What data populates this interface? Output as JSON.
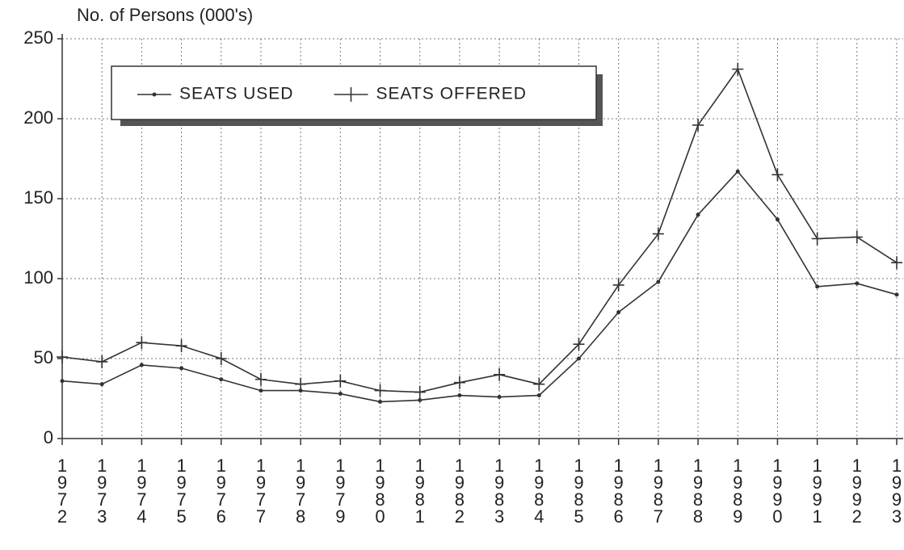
{
  "chart_data": {
    "type": "line",
    "y_axis_label": "No. of Persons (000's)",
    "categories": [
      "1972",
      "1973",
      "1974",
      "1975",
      "1976",
      "1977",
      "1978",
      "1979",
      "1980",
      "1981",
      "1982",
      "1983",
      "1984",
      "1985",
      "1986",
      "1987",
      "1988",
      "1989",
      "1990",
      "1991",
      "1992",
      "1993"
    ],
    "series": [
      {
        "name": "SEATS USED",
        "color": "#333333",
        "marker": "dot",
        "values": [
          36,
          34,
          46,
          44,
          37,
          30,
          30,
          28,
          23,
          24,
          27,
          26,
          27,
          50,
          79,
          98,
          140,
          167,
          137,
          95,
          97,
          90
        ]
      },
      {
        "name": "SEATS OFFERED",
        "color": "#333333",
        "marker": "plus",
        "values": [
          51,
          48,
          60,
          58,
          50,
          37,
          34,
          36,
          30,
          29,
          35,
          40,
          34,
          59,
          96,
          128,
          196,
          231,
          165,
          125,
          126,
          110
        ]
      }
    ],
    "ylim": [
      0,
      250
    ],
    "yticks": [
      0,
      50,
      100,
      150,
      200,
      250
    ],
    "grid": true
  }
}
